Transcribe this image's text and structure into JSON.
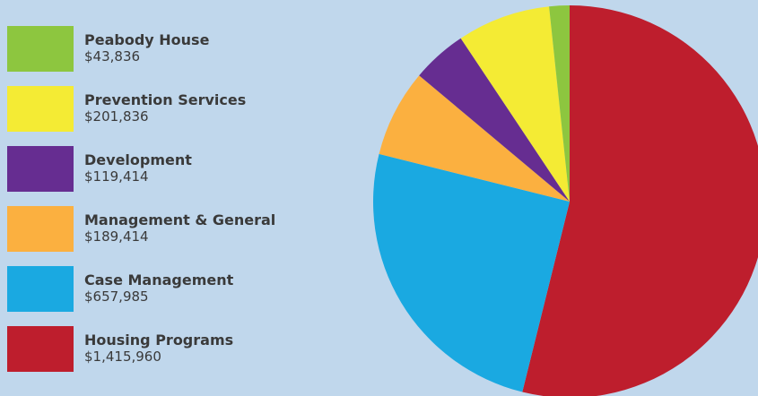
{
  "chart_data": {
    "type": "pie",
    "title": "",
    "legend_position": "left",
    "slices": [
      {
        "label": "Peabody House",
        "value_label": "$43,836",
        "value": 43836,
        "color": "#8dc63f"
      },
      {
        "label": "Prevention Services",
        "value_label": "$201,836",
        "value": 201836,
        "color": "#f4eb34"
      },
      {
        "label": "Development",
        "value_label": "$119,414",
        "value": 119414,
        "color": "#662d91"
      },
      {
        "label": "Management & General",
        "value_label": "$189,414",
        "value": 189414,
        "color": "#fbb040"
      },
      {
        "label": "Case Management",
        "value_label": "$657,985",
        "value": 657985,
        "color": "#1aa9e1"
      },
      {
        "label": "Housing Programs",
        "value_label": "$1,415,960",
        "value": 1415960,
        "color": "#be1e2d"
      }
    ]
  }
}
